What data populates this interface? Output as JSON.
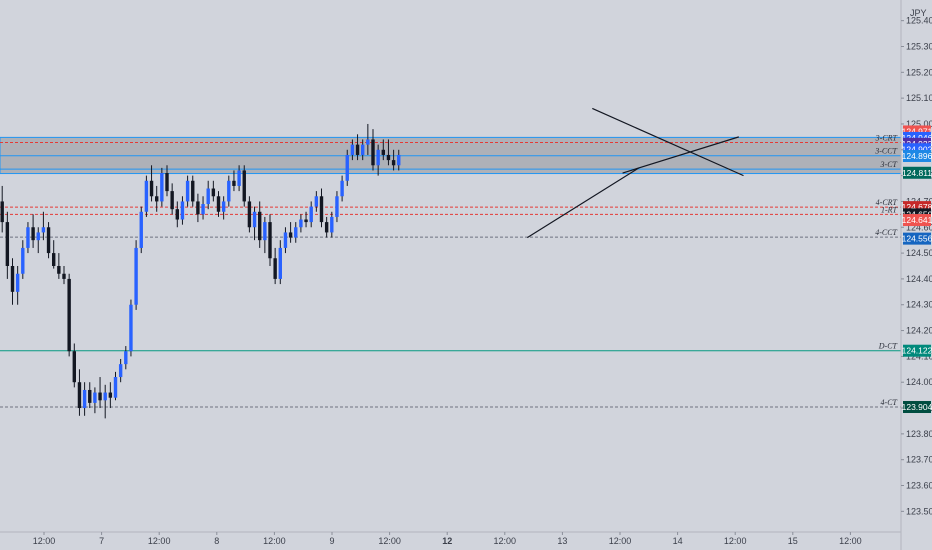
{
  "currency_label": "JPY",
  "price_axis": {
    "min": 123.42,
    "max": 125.48,
    "ticks": [
      "125.400",
      "125.300",
      "125.200",
      "125.100",
      "125.000",
      "124.900",
      "124.800",
      "124.700",
      "124.600",
      "124.500",
      "124.400",
      "124.300",
      "124.200",
      "124.100",
      "124.000",
      "123.900",
      "123.800",
      "123.700",
      "123.600",
      "123.500"
    ],
    "tick_values": [
      125.4,
      125.3,
      125.2,
      125.1,
      125.0,
      124.9,
      124.8,
      124.7,
      124.6,
      124.5,
      124.4,
      124.3,
      124.2,
      124.1,
      124.0,
      123.9,
      123.8,
      123.7,
      123.6,
      123.5
    ]
  },
  "time_axis": {
    "labels": [
      "12:00",
      "7",
      "12:00",
      "8",
      "12:00",
      "9",
      "12:00",
      "12",
      "12:00",
      "13",
      "12:00",
      "14",
      "12:00",
      "15",
      "12:00"
    ],
    "bold": [
      false,
      false,
      false,
      false,
      false,
      false,
      false,
      true,
      false,
      false,
      false,
      false,
      false,
      false,
      false
    ]
  },
  "colors": {
    "background": "#d1d4dc",
    "bull": "#2962ff",
    "bear": "#131722",
    "wick": "#131722",
    "zone_fill": "#a8aab2",
    "zone_border": "#2196f3",
    "red_level": "#e53935",
    "gray_level": "#6e7280",
    "teal_level": "#089981"
  },
  "zone": {
    "top": 124.948,
    "bottom": 124.808
  },
  "levels": [
    {
      "name": "3-CRT",
      "price": 124.928,
      "label": "3-CRT",
      "style": "dashed",
      "color": "#e53935"
    },
    {
      "name": "3-CCT",
      "price": 124.877,
      "label": "3-CCT",
      "style": "solid",
      "color": "#2196f3"
    },
    {
      "name": "3-CT",
      "price": 124.825,
      "label": "3-CT",
      "style": "solid",
      "color": "#2196f3"
    },
    {
      "name": "4-CRT",
      "price": 124.678,
      "label": "4-CRT",
      "style": "dashed",
      "color": "#e53935"
    },
    {
      "name": "1-RT",
      "price": 124.65,
      "label": "1-RT",
      "style": "dashed",
      "color": "#e53935"
    },
    {
      "name": "4-CCT",
      "price": 124.562,
      "label": "4-CCT",
      "style": "dashed",
      "color": "#6e7280"
    },
    {
      "name": "D-CT",
      "price": 124.122,
      "label": "D-CT",
      "style": "solid",
      "color": "#089981"
    },
    {
      "name": "4-CT",
      "price": 123.904,
      "label": "4-CT",
      "style": "dashed",
      "color": "#6e7280"
    }
  ],
  "price_badges": [
    {
      "text": "124.971",
      "price": 124.971,
      "color": "#ef5350"
    },
    {
      "text": "124.946",
      "price": 124.946,
      "color": "#2962ff"
    },
    {
      "text": "124.923",
      "price": 124.923,
      "color": "#512da8"
    },
    {
      "text": "124.902",
      "price": 124.902,
      "color": "#2962ff"
    },
    {
      "text": "124.896",
      "price": 124.876,
      "color": "#1e88e5"
    },
    {
      "text": "124.811",
      "price": 124.811,
      "color": "#00695c"
    },
    {
      "text": "124.678",
      "price": 124.678,
      "color": "#c62828"
    },
    {
      "text": "124.650",
      "price": 124.65,
      "color": "#131722"
    },
    {
      "text": "124.641",
      "price": 124.628,
      "color": "#ef5350"
    },
    {
      "text": "124.556",
      "price": 124.556,
      "color": "#1565c0"
    },
    {
      "text": "124.122",
      "price": 124.122,
      "color": "#00897b"
    },
    {
      "text": "123.904",
      "price": 123.904,
      "color": "#004d40"
    }
  ],
  "chart_data": {
    "type": "candlestick",
    "instrument_quote": "JPY",
    "ylim": [
      123.42,
      125.48
    ],
    "grid": false,
    "ohlc": [
      [
        124.7,
        124.76,
        124.58,
        124.62
      ],
      [
        124.62,
        124.66,
        124.4,
        124.45
      ],
      [
        124.45,
        124.48,
        124.3,
        124.35
      ],
      [
        124.35,
        124.45,
        124.3,
        124.42
      ],
      [
        124.42,
        124.55,
        124.4,
        124.52
      ],
      [
        124.52,
        124.62,
        124.5,
        124.6
      ],
      [
        124.6,
        124.65,
        124.52,
        124.55
      ],
      [
        124.55,
        124.6,
        124.5,
        124.58
      ],
      [
        124.58,
        124.66,
        124.55,
        124.6
      ],
      [
        124.6,
        124.62,
        124.48,
        124.5
      ],
      [
        124.5,
        124.55,
        124.44,
        124.45
      ],
      [
        124.45,
        124.5,
        124.4,
        124.42
      ],
      [
        124.42,
        124.45,
        124.38,
        124.4
      ],
      [
        124.4,
        124.42,
        124.1,
        124.12
      ],
      [
        124.12,
        124.15,
        123.98,
        124.0
      ],
      [
        124.0,
        124.05,
        123.87,
        123.9
      ],
      [
        123.9,
        124.0,
        123.87,
        123.97
      ],
      [
        123.97,
        124.0,
        123.9,
        123.92
      ],
      [
        123.92,
        123.98,
        123.88,
        123.96
      ],
      [
        123.96,
        124.02,
        123.9,
        123.93
      ],
      [
        123.93,
        123.99,
        123.86,
        123.96
      ],
      [
        123.96,
        124.0,
        123.9,
        123.94
      ],
      [
        123.94,
        124.04,
        123.93,
        124.02
      ],
      [
        124.02,
        124.09,
        124.0,
        124.07
      ],
      [
        124.07,
        124.14,
        124.05,
        124.12
      ],
      [
        124.12,
        124.32,
        124.1,
        124.3
      ],
      [
        124.3,
        124.55,
        124.28,
        124.52
      ],
      [
        124.52,
        124.68,
        124.5,
        124.66
      ],
      [
        124.66,
        124.8,
        124.64,
        124.78
      ],
      [
        124.78,
        124.84,
        124.7,
        124.72
      ],
      [
        124.72,
        124.76,
        124.66,
        124.7
      ],
      [
        124.7,
        124.83,
        124.68,
        124.81
      ],
      [
        124.81,
        124.84,
        124.72,
        124.74
      ],
      [
        124.74,
        124.77,
        124.65,
        124.67
      ],
      [
        124.67,
        124.7,
        124.6,
        124.63
      ],
      [
        124.63,
        124.72,
        124.61,
        124.7
      ],
      [
        124.7,
        124.8,
        124.68,
        124.78
      ],
      [
        124.78,
        124.8,
        124.68,
        124.7
      ],
      [
        124.7,
        124.73,
        124.62,
        124.65
      ],
      [
        124.65,
        124.72,
        124.63,
        124.69
      ],
      [
        124.69,
        124.78,
        124.67,
        124.75
      ],
      [
        124.75,
        124.78,
        124.7,
        124.72
      ],
      [
        124.72,
        124.74,
        124.64,
        124.66
      ],
      [
        124.66,
        124.72,
        124.63,
        124.7
      ],
      [
        124.7,
        124.8,
        124.68,
        124.78
      ],
      [
        124.78,
        124.82,
        124.74,
        124.76
      ],
      [
        124.76,
        124.84,
        124.74,
        124.82
      ],
      [
        124.82,
        124.84,
        124.68,
        124.7
      ],
      [
        124.7,
        124.72,
        124.58,
        124.6
      ],
      [
        124.6,
        124.68,
        124.55,
        124.66
      ],
      [
        124.66,
        124.7,
        124.52,
        124.55
      ],
      [
        124.55,
        124.64,
        124.5,
        124.62
      ],
      [
        124.62,
        124.65,
        124.45,
        124.48
      ],
      [
        124.48,
        124.52,
        124.38,
        124.4
      ],
      [
        124.4,
        124.55,
        124.38,
        124.52
      ],
      [
        124.52,
        124.6,
        124.5,
        124.58
      ],
      [
        124.58,
        124.62,
        124.54,
        124.56
      ],
      [
        124.56,
        124.62,
        124.54,
        124.6
      ],
      [
        124.6,
        124.65,
        124.58,
        124.63
      ],
      [
        124.63,
        124.66,
        124.6,
        124.62
      ],
      [
        124.62,
        124.7,
        124.6,
        124.68
      ],
      [
        124.68,
        124.74,
        124.66,
        124.72
      ],
      [
        124.72,
        124.75,
        124.6,
        124.62
      ],
      [
        124.62,
        124.64,
        124.56,
        124.58
      ],
      [
        124.58,
        124.66,
        124.56,
        124.64
      ],
      [
        124.64,
        124.74,
        124.62,
        124.72
      ],
      [
        124.72,
        124.8,
        124.7,
        124.78
      ],
      [
        124.78,
        124.9,
        124.76,
        124.88
      ],
      [
        124.88,
        124.94,
        124.86,
        124.92
      ],
      [
        124.92,
        124.96,
        124.86,
        124.88
      ],
      [
        124.88,
        124.94,
        124.86,
        124.92
      ],
      [
        124.92,
        125.0,
        124.88,
        124.94
      ],
      [
        124.94,
        124.98,
        124.82,
        124.84
      ],
      [
        124.84,
        124.92,
        124.8,
        124.9
      ],
      [
        124.9,
        124.94,
        124.86,
        124.88
      ],
      [
        124.88,
        124.94,
        124.84,
        124.86
      ],
      [
        124.86,
        124.9,
        124.82,
        124.84
      ],
      [
        124.84,
        124.9,
        124.82,
        124.88
      ]
    ],
    "trendlines": [
      {
        "from": [
          0.5852,
          124.56
        ],
        "to": [
          0.7091,
          124.83
        ]
      },
      {
        "from": [
          0.6574,
          125.06
        ],
        "to": [
          0.8252,
          124.8
        ]
      },
      {
        "from": [
          0.691,
          124.81
        ],
        "to": [
          0.82,
          124.95
        ]
      }
    ]
  }
}
